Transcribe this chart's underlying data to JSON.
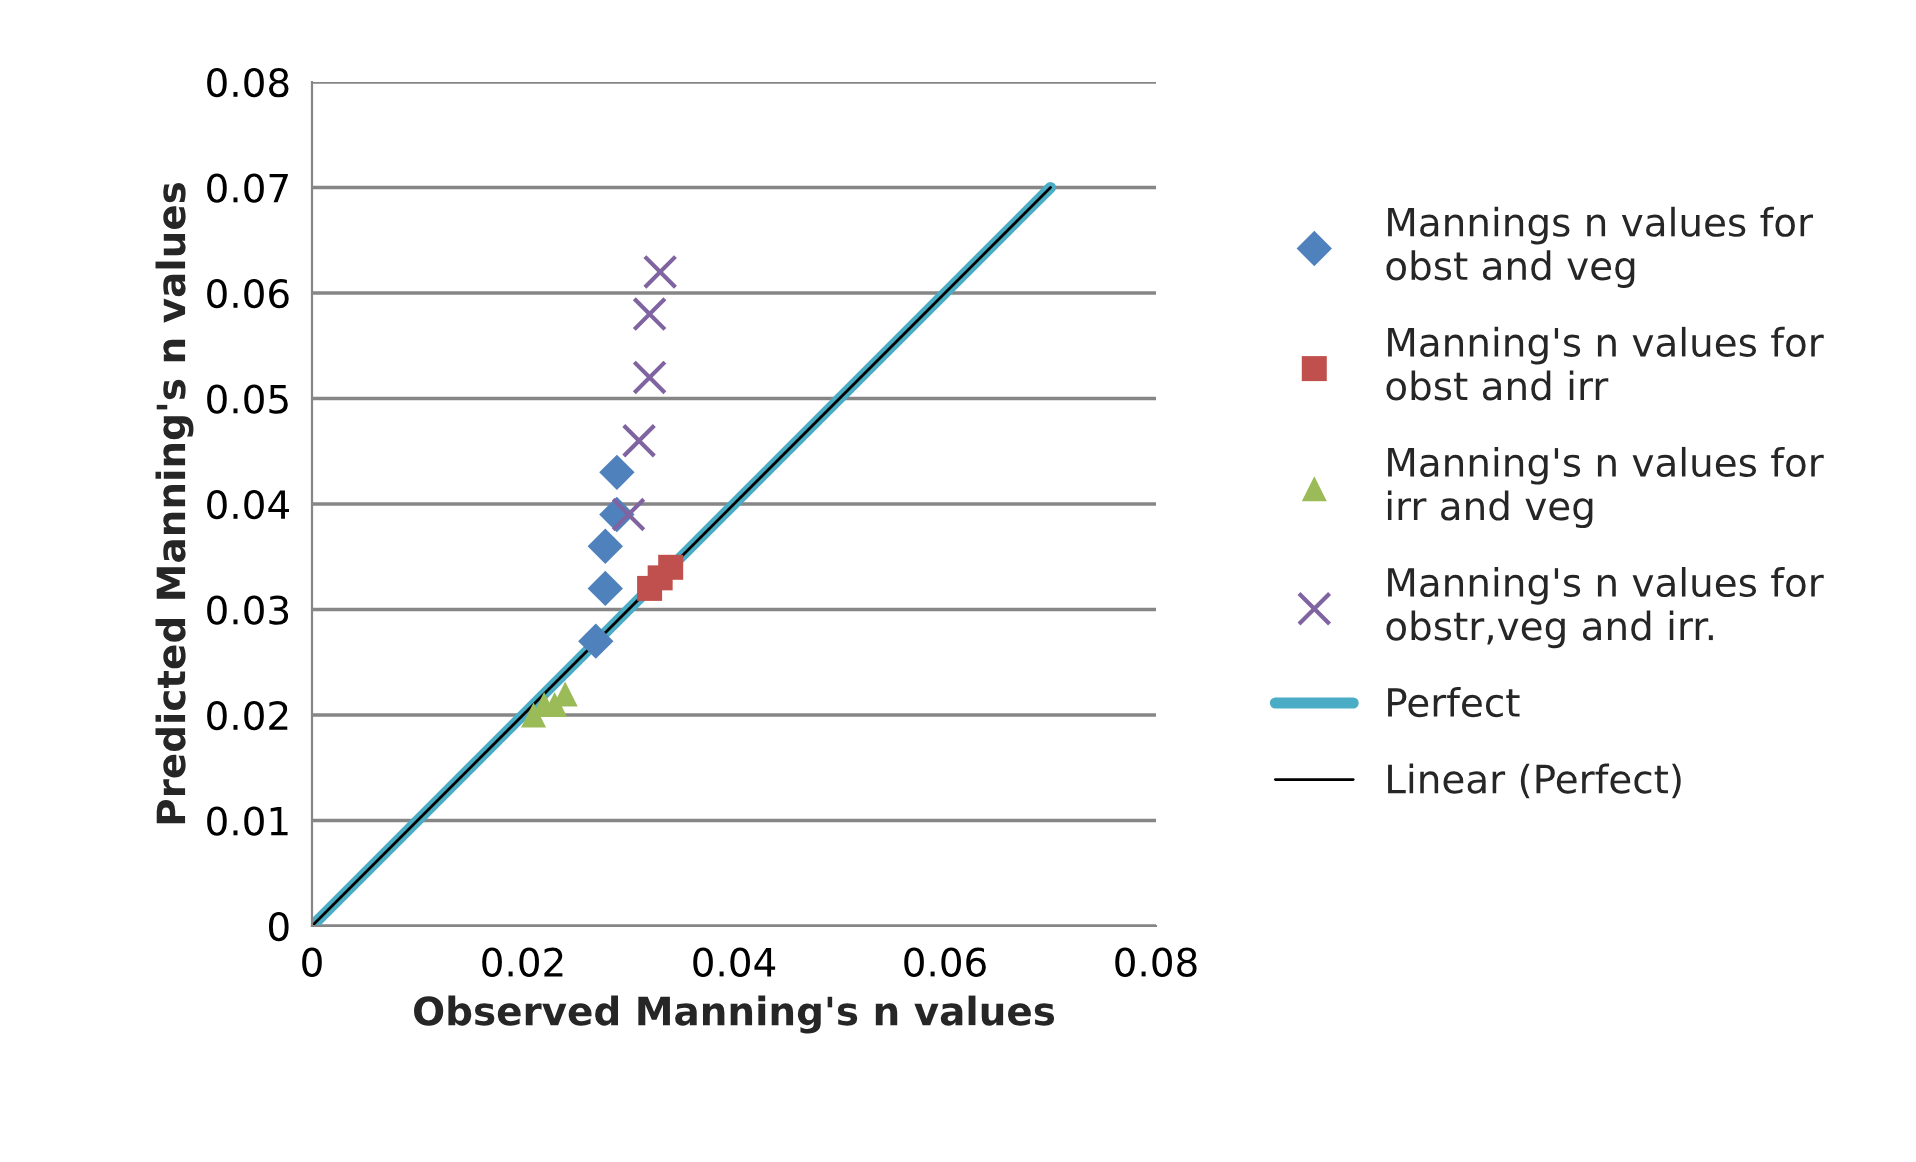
{
  "chart_data": {
    "type": "scatter",
    "xlabel": "Observed Manning's n values",
    "ylabel": "Predicted Manning's n values",
    "xlim": [
      0,
      0.08
    ],
    "ylim": [
      0,
      0.08
    ],
    "xticks": [
      0,
      0.02,
      0.04,
      0.06,
      0.08
    ],
    "yticks": [
      0,
      0.01,
      0.02,
      0.03,
      0.04,
      0.05,
      0.06,
      0.07,
      0.08
    ],
    "grid": "y",
    "legend": "right",
    "series": [
      {
        "name": "Mannings n values for obst and veg",
        "color": "#4f81bd",
        "marker": "diamond",
        "x": [
          0.0289,
          0.0289,
          0.0278,
          0.0278,
          0.0269
        ],
        "values": [
          0.043,
          0.039,
          0.036,
          0.032,
          0.027
        ]
      },
      {
        "name": "Manning's n values for obst and irr",
        "color": "#c0504d",
        "marker": "square",
        "x": [
          0.032,
          0.033,
          0.034
        ],
        "values": [
          0.032,
          0.033,
          0.034
        ]
      },
      {
        "name": "Manning's n values for irr and veg",
        "color": "#9bbb59",
        "marker": "triangle",
        "x": [
          0.021,
          0.022,
          0.023,
          0.024
        ],
        "values": [
          0.02,
          0.021,
          0.021,
          0.022
        ]
      },
      {
        "name": "Manning's n values for obstr,veg and irr.",
        "color": "#8064a2",
        "marker": "cross",
        "x": [
          0.033,
          0.032,
          0.032,
          0.031,
          0.03
        ],
        "values": [
          0.062,
          0.058,
          0.052,
          0.046,
          0.039
        ]
      },
      {
        "name": "Perfect",
        "type": "line",
        "color": "#4bacc6",
        "marker": "none",
        "x": [
          0,
          0.07
        ],
        "values": [
          0,
          0.07
        ]
      },
      {
        "name": "Linear (Perfect)",
        "type": "line",
        "color": "#000000",
        "marker": "none",
        "x": [
          0,
          0.07
        ],
        "values": [
          0,
          0.07
        ]
      }
    ]
  }
}
